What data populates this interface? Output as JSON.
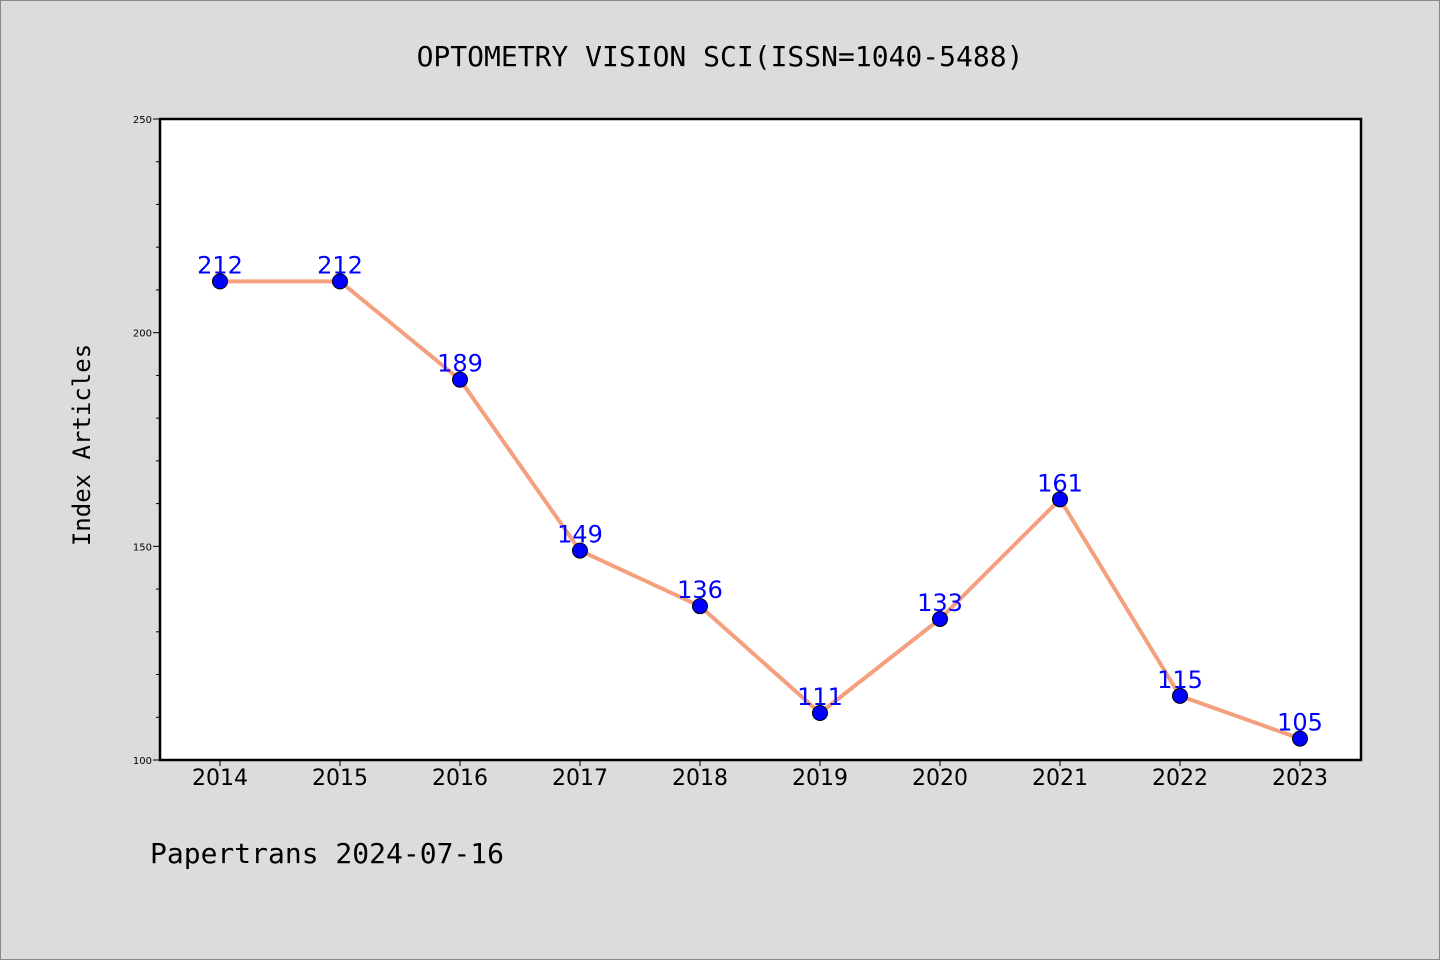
{
  "chart_data": {
    "type": "line",
    "title": "OPTOMETRY VISION SCI(ISSN=1040-5488)",
    "xlabel": "",
    "ylabel": "Index Articles",
    "footer": "Papertrans 2024-07-16",
    "categories": [
      "2014",
      "2015",
      "2016",
      "2017",
      "2018",
      "2019",
      "2020",
      "2021",
      "2022",
      "2023"
    ],
    "series": [
      {
        "values": [
          212,
          212,
          189,
          149,
          136,
          111,
          133,
          161,
          115,
          105
        ]
      }
    ],
    "ylim": [
      100,
      250
    ],
    "yticks": [
      "100",
      "150",
      "200",
      "250"
    ],
    "grid": false,
    "colors": {
      "line": "#f4a07e",
      "marker": "#0000ff",
      "data_label": "#0000ff",
      "background": "#dcdcdc",
      "plot_background": "#ffffff"
    }
  }
}
